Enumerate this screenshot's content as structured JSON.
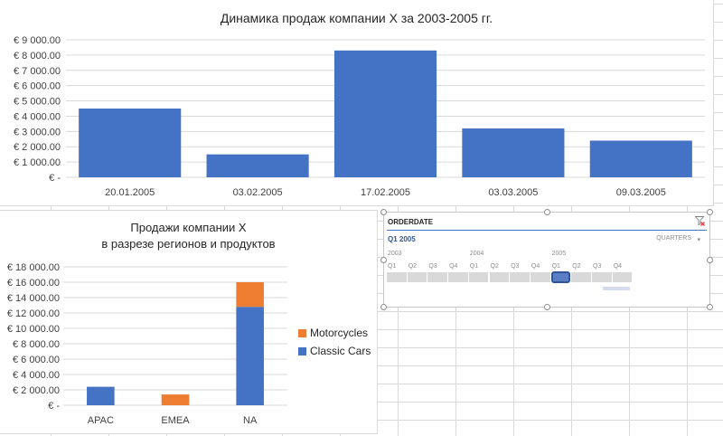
{
  "chart_data": [
    {
      "type": "bar",
      "title": "Динамика продаж компании X за 2003-2005 гг.",
      "categories": [
        "20.01.2005",
        "03.02.2005",
        "17.02.2005",
        "03.03.2005",
        "09.03.2005"
      ],
      "values": [
        4500,
        1500,
        8300,
        3200,
        2400
      ],
      "ylim": [
        0,
        9000
      ],
      "yticks": [
        "€ -",
        "€ 1 000.00",
        "€ 2 000.00",
        "€ 3 000.00",
        "€ 4 000.00",
        "€ 5 000.00",
        "€ 6 000.00",
        "€ 7 000.00",
        "€ 8 000.00",
        "€ 9 000.00"
      ],
      "grid": true,
      "color": "#4472c4"
    },
    {
      "type": "bar",
      "stacked": true,
      "title_lines": [
        "Продажи компании X",
        "в разрезе регионов и продуктов"
      ],
      "categories": [
        "APAC",
        "EMEA",
        "NA"
      ],
      "series": [
        {
          "name": "Classic Cars",
          "values": [
            2400,
            0,
            12800
          ],
          "color": "#4472c4"
        },
        {
          "name": "Motorcycles",
          "values": [
            0,
            1400,
            3200
          ],
          "color": "#ed7d31"
        }
      ],
      "ylim": [
        0,
        18000
      ],
      "yticks": [
        "€ -",
        "€ 2 000.00",
        "€ 4 000.00",
        "€ 6 000.00",
        "€ 8 000.00",
        "€ 10 000.00",
        "€ 12 000.00",
        "€ 14 000.00",
        "€ 16 000.00",
        "€ 18 000.00"
      ],
      "grid": true,
      "legend": [
        "Motorcycles",
        "Classic Cars"
      ],
      "legend_position": "right"
    }
  ],
  "slicer": {
    "title": "ORDERDATE",
    "range_label": "Q1 2005",
    "level_label": "QUARTERS",
    "level_caret": "▾",
    "years": [
      "2003",
      "2004",
      "2005"
    ],
    "quarters": [
      "Q1",
      "Q2",
      "Q3",
      "Q4",
      "Q1",
      "Q2",
      "Q3",
      "Q4",
      "Q1",
      "Q2",
      "Q3",
      "Q4"
    ],
    "selected_index": 8
  }
}
